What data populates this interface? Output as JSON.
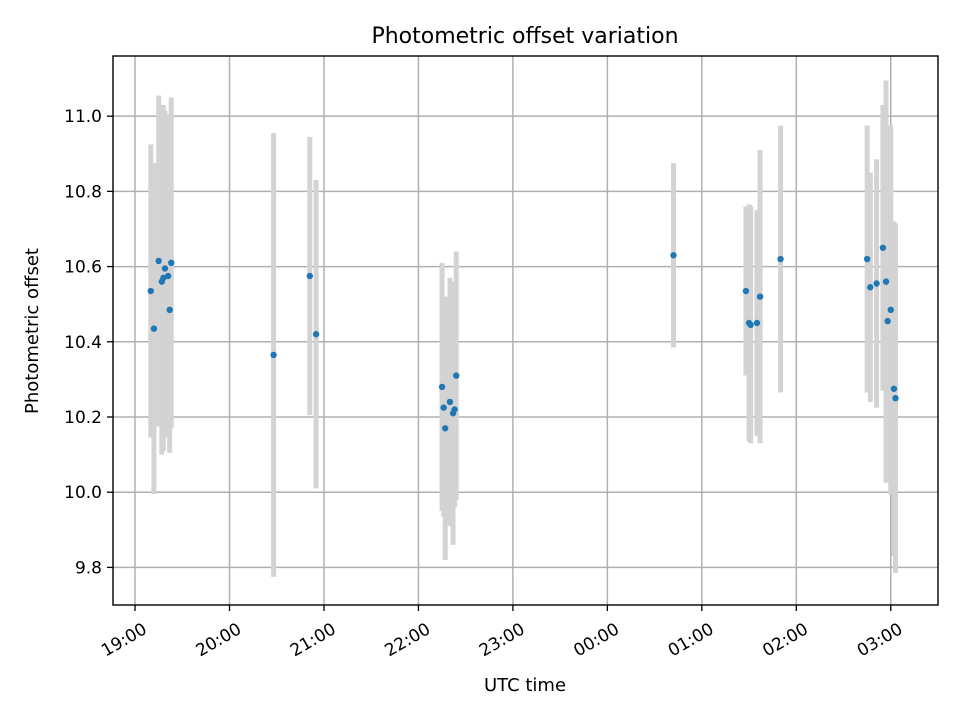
{
  "chart_data": {
    "type": "scatter",
    "title": "Photometric offset variation",
    "xlabel": "UTC time",
    "ylabel": "Photometric offset",
    "x_unit": "hours of UTC time (24h clock, continuing past midnight)",
    "xlim": [
      "18:46",
      "03:30"
    ],
    "ylim": [
      9.7,
      11.16
    ],
    "grid": true,
    "x_ticks": [
      "19:00",
      "20:00",
      "21:00",
      "22:00",
      "23:00",
      "00:00",
      "01:00",
      "02:00",
      "03:00"
    ],
    "y_ticks": [
      "9.8",
      "10.0",
      "10.2",
      "10.4",
      "10.6",
      "10.8",
      "11.0"
    ],
    "colors": {
      "points": "#1f77b4",
      "error_bars": "#d3d3d3",
      "grid": "#b0b0b0"
    },
    "series": [
      {
        "points": [
          {
            "x": "19:10",
            "y": 10.535,
            "yerr": 0.39
          },
          {
            "x": "19:12",
            "y": 10.435,
            "yerr": 0.44
          },
          {
            "x": "19:15",
            "y": 10.615,
            "yerr": 0.44
          },
          {
            "x": "19:17",
            "y": 10.56,
            "yerr": 0.46
          },
          {
            "x": "19:18",
            "y": 10.57,
            "yerr": 0.46
          },
          {
            "x": "19:19",
            "y": 10.595,
            "yerr": 0.42
          },
          {
            "x": "19:21",
            "y": 10.575,
            "yerr": 0.43
          },
          {
            "x": "19:22",
            "y": 10.485,
            "yerr": 0.38
          },
          {
            "x": "19:23",
            "y": 10.61,
            "yerr": 0.44
          },
          {
            "x": "20:28",
            "y": 10.365,
            "yerr": 0.59
          },
          {
            "x": "20:51",
            "y": 10.575,
            "yerr": 0.37
          },
          {
            "x": "20:55",
            "y": 10.42,
            "yerr": 0.41
          },
          {
            "x": "22:15",
            "y": 10.28,
            "yerr": 0.33
          },
          {
            "x": "22:16",
            "y": 10.225,
            "yerr": 0.29
          },
          {
            "x": "22:17",
            "y": 10.17,
            "yerr": 0.35
          },
          {
            "x": "22:20",
            "y": 10.24,
            "yerr": 0.33
          },
          {
            "x": "22:22",
            "y": 10.21,
            "yerr": 0.35
          },
          {
            "x": "22:23",
            "y": 10.22,
            "yerr": 0.26
          },
          {
            "x": "22:24",
            "y": 10.31,
            "yerr": 0.33
          },
          {
            "x": "00:42",
            "y": 10.63,
            "yerr": 0.245
          },
          {
            "x": "01:28",
            "y": 10.535,
            "yerr": 0.225
          },
          {
            "x": "01:30",
            "y": 10.45,
            "yerr": 0.315
          },
          {
            "x": "01:31",
            "y": 10.445,
            "yerr": 0.315
          },
          {
            "x": "01:35",
            "y": 10.45,
            "yerr": 0.3
          },
          {
            "x": "01:37",
            "y": 10.52,
            "yerr": 0.39
          },
          {
            "x": "01:50",
            "y": 10.62,
            "yerr": 0.355
          },
          {
            "x": "02:45",
            "y": 10.62,
            "yerr": 0.355
          },
          {
            "x": "02:47",
            "y": 10.545,
            "yerr": 0.305
          },
          {
            "x": "02:51",
            "y": 10.555,
            "yerr": 0.33
          },
          {
            "x": "02:55",
            "y": 10.65,
            "yerr": 0.38
          },
          {
            "x": "02:57",
            "y": 10.56,
            "yerr": 0.535
          },
          {
            "x": "02:58",
            "y": 10.455,
            "yerr": 0.43
          },
          {
            "x": "03:00",
            "y": 10.485,
            "yerr": 0.49
          },
          {
            "x": "03:02",
            "y": 10.275,
            "yerr": 0.445
          },
          {
            "x": "03:03",
            "y": 10.25,
            "yerr": 0.465
          }
        ]
      }
    ]
  }
}
